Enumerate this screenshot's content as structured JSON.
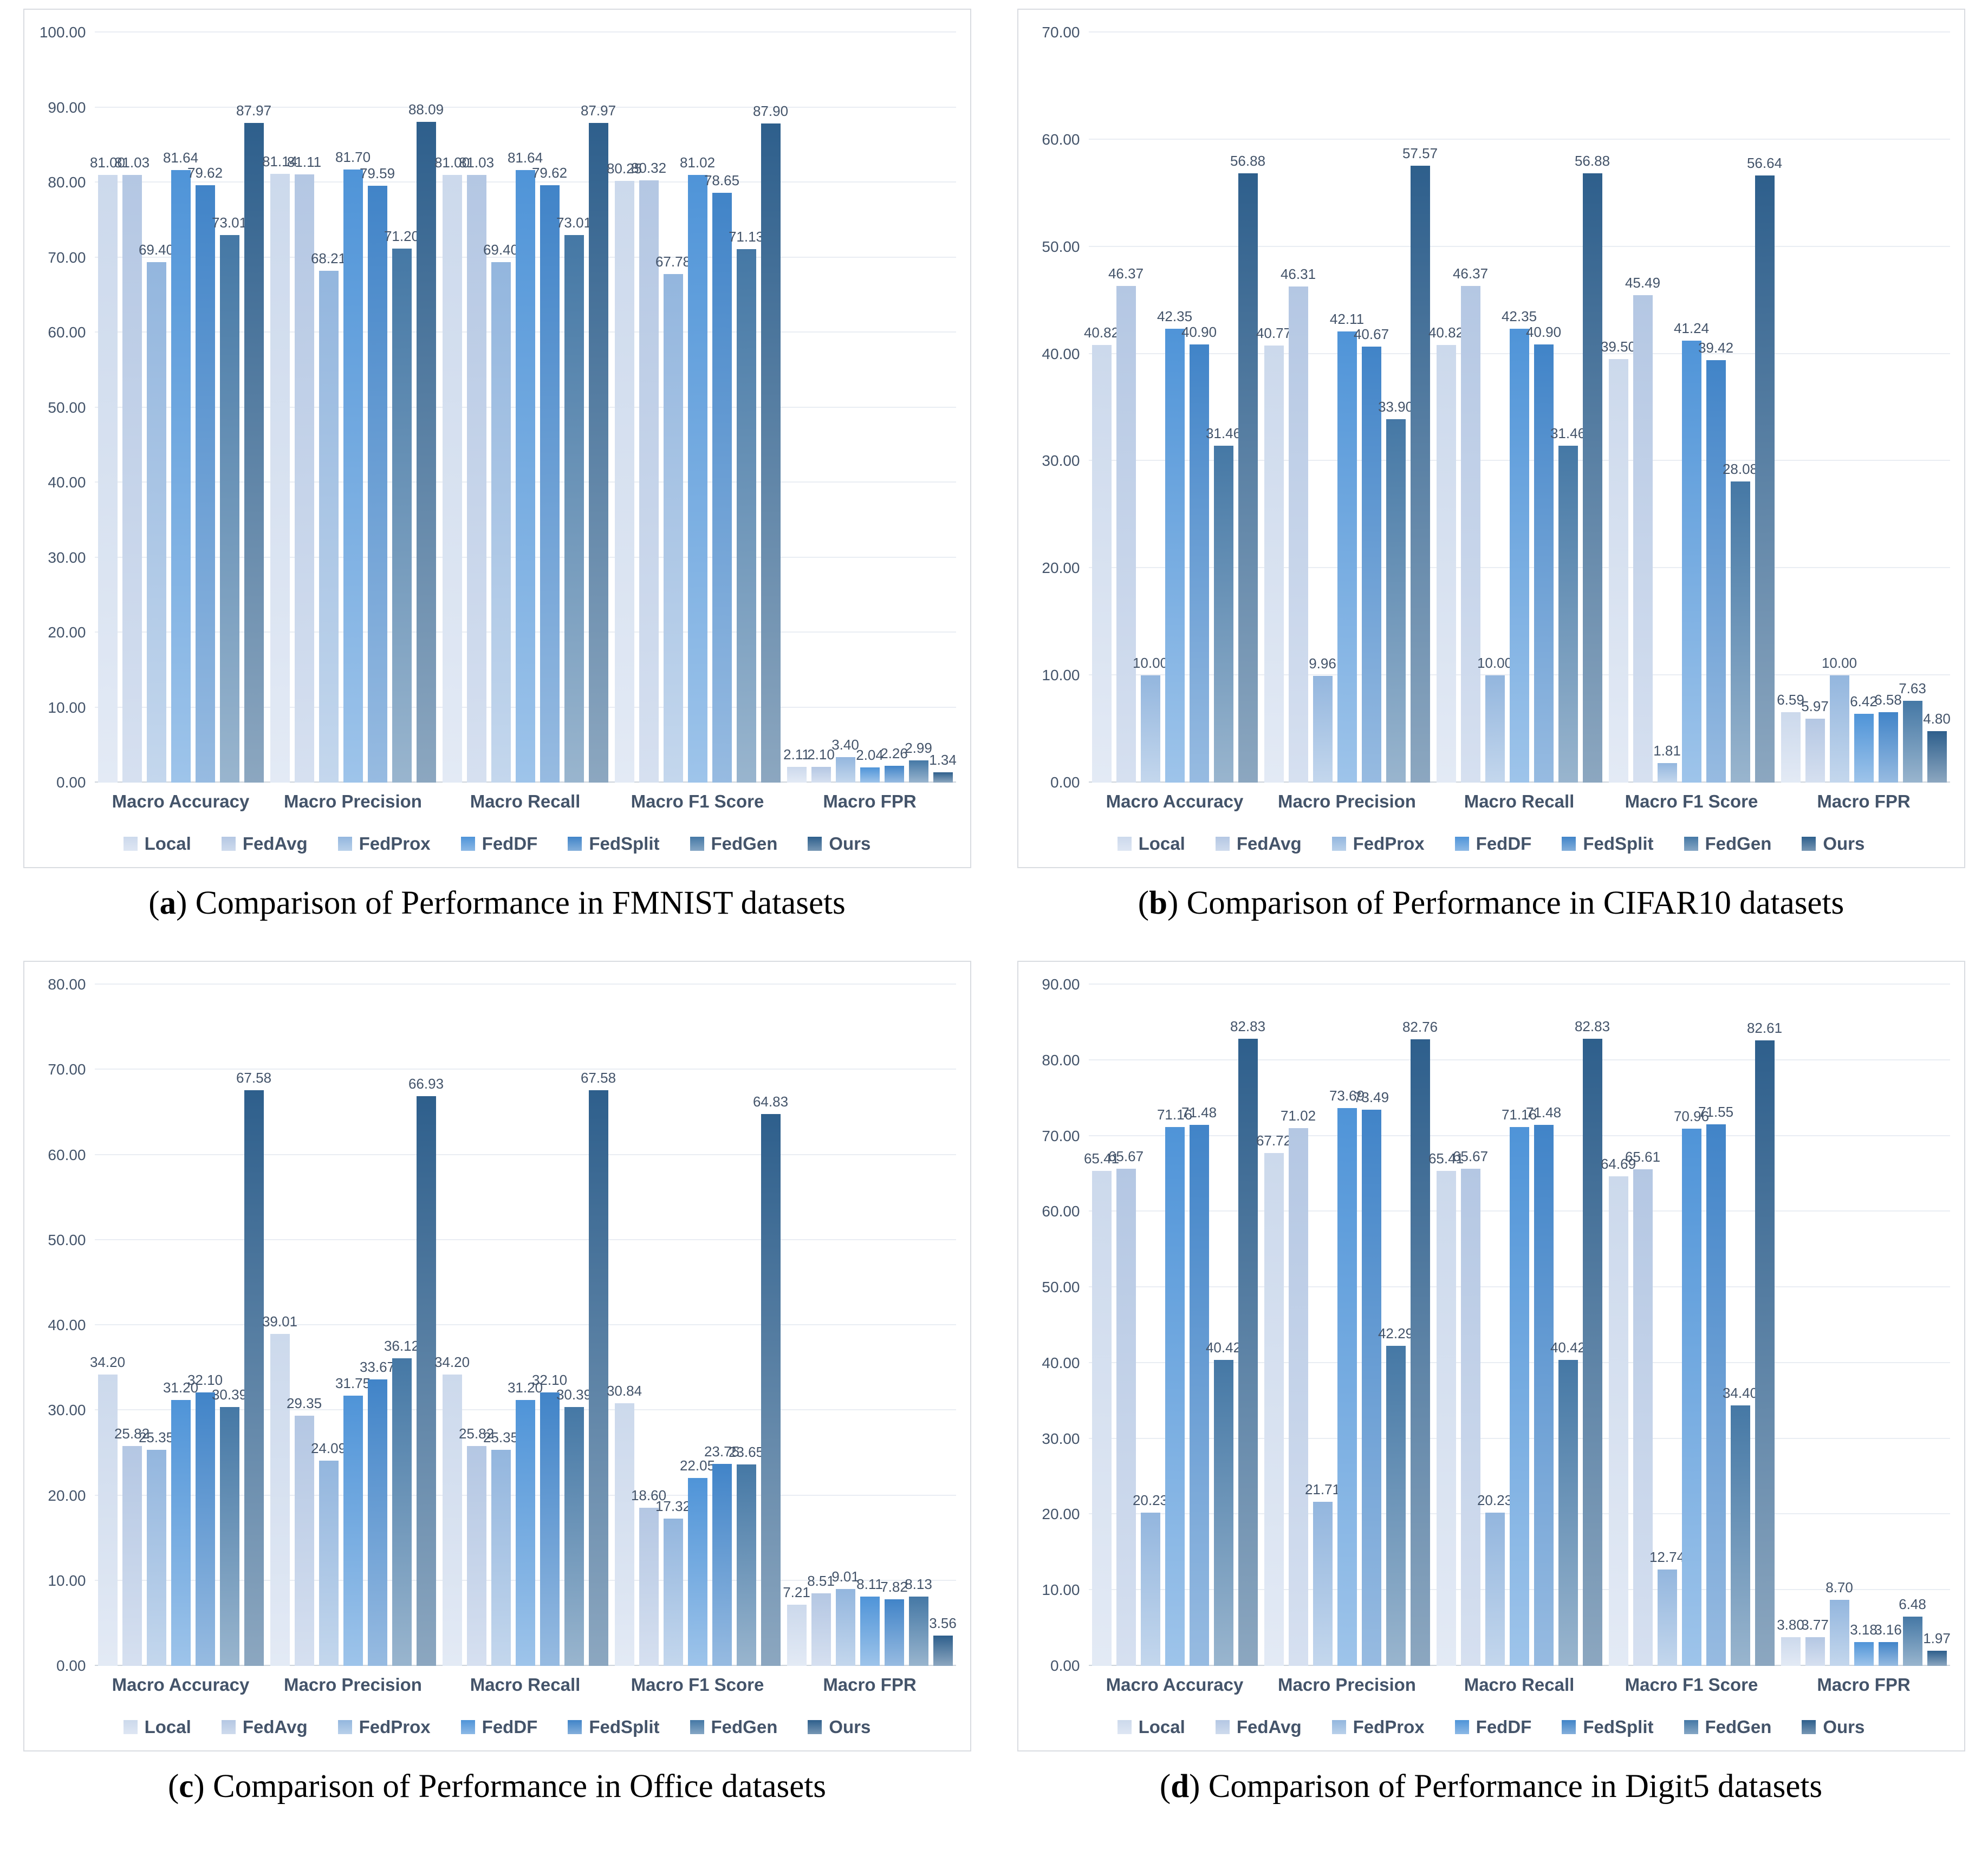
{
  "figure": {
    "series_names": [
      "Local",
      "FedAvg",
      "FedProx",
      "FedDF",
      "FedSplit",
      "FedGen",
      "Ours"
    ],
    "series_colors": [
      "#ccd9ec",
      "#b4c7e3",
      "#93b6de",
      "#4f94d8",
      "#4184c8",
      "#4578a5",
      "#2e5f8c"
    ],
    "text_color": "#44546a",
    "gridline_color": "#e9edf3"
  },
  "chart_data": [
    {
      "type": "bar",
      "caption_label": "a",
      "caption_text": "Comparison of Performance in FMNIST datasets",
      "categories": [
        "Macro Accuracy",
        "Macro Precision",
        "Macro Recall",
        "Macro F1 Score",
        "Macro FPR"
      ],
      "series": [
        {
          "name": "Local",
          "values": [
            81.0,
            81.14,
            81.0,
            80.25,
            2.11
          ]
        },
        {
          "name": "FedAvg",
          "values": [
            81.03,
            81.11,
            81.03,
            80.32,
            2.1
          ]
        },
        {
          "name": "FedProx",
          "values": [
            69.4,
            68.21,
            69.4,
            67.78,
            3.4
          ]
        },
        {
          "name": "FedDF",
          "values": [
            81.64,
            81.7,
            81.64,
            81.02,
            2.04
          ]
        },
        {
          "name": "FedSplit",
          "values": [
            79.62,
            79.59,
            79.62,
            78.65,
            2.26
          ]
        },
        {
          "name": "FedGen",
          "values": [
            73.01,
            71.2,
            73.01,
            71.13,
            2.99
          ]
        },
        {
          "name": "Ours",
          "values": [
            87.97,
            88.09,
            87.97,
            87.9,
            1.34
          ]
        }
      ],
      "ylim": [
        0,
        100
      ],
      "ytick_step": 10,
      "grid": true,
      "legend_position": "bottom"
    },
    {
      "type": "bar",
      "caption_label": "b",
      "caption_text": "Comparison of Performance in CIFAR10 datasets",
      "categories": [
        "Macro Accuracy",
        "Macro Precision",
        "Macro Recall",
        "Macro F1 Score",
        "Macro FPR"
      ],
      "series": [
        {
          "name": "Local",
          "values": [
            40.82,
            40.77,
            40.82,
            39.5,
            6.59
          ]
        },
        {
          "name": "FedAvg",
          "values": [
            46.37,
            46.31,
            46.37,
            45.49,
            5.97
          ]
        },
        {
          "name": "FedProx",
          "values": [
            10.0,
            9.96,
            10.0,
            1.81,
            10.0
          ]
        },
        {
          "name": "FedDF",
          "values": [
            42.35,
            42.11,
            42.35,
            41.24,
            6.42
          ]
        },
        {
          "name": "FedSplit",
          "values": [
            40.9,
            40.67,
            40.9,
            39.42,
            6.58
          ]
        },
        {
          "name": "FedGen",
          "values": [
            31.46,
            33.9,
            31.46,
            28.08,
            7.63
          ]
        },
        {
          "name": "Ours",
          "values": [
            56.88,
            57.57,
            56.88,
            56.64,
            4.8
          ]
        }
      ],
      "ylim": [
        0,
        70
      ],
      "ytick_step": 10,
      "grid": true,
      "legend_position": "bottom"
    },
    {
      "type": "bar",
      "caption_label": "c",
      "caption_text": "Comparison of Performance in Office datasets",
      "categories": [
        "Macro Accuracy",
        "Macro Precision",
        "Macro Recall",
        "Macro F1 Score",
        "Macro FPR"
      ],
      "series": [
        {
          "name": "Local",
          "values": [
            34.2,
            39.01,
            34.2,
            30.84,
            7.21
          ]
        },
        {
          "name": "FedAvg",
          "values": [
            25.82,
            29.35,
            25.82,
            18.6,
            8.51
          ]
        },
        {
          "name": "FedProx",
          "values": [
            25.35,
            24.09,
            25.35,
            17.32,
            9.01
          ]
        },
        {
          "name": "FedDF",
          "values": [
            31.2,
            31.75,
            31.2,
            22.05,
            8.11
          ]
        },
        {
          "name": "FedSplit",
          "values": [
            32.1,
            33.67,
            32.1,
            23.75,
            7.82
          ]
        },
        {
          "name": "FedGen",
          "values": [
            30.39,
            36.12,
            30.39,
            23.65,
            8.13
          ]
        },
        {
          "name": "Ours",
          "values": [
            67.58,
            66.93,
            67.58,
            64.83,
            3.56
          ]
        }
      ],
      "ylim": [
        0,
        80
      ],
      "ytick_step": 10,
      "grid": true,
      "legend_position": "bottom"
    },
    {
      "type": "bar",
      "caption_label": "d",
      "caption_text": "Comparison of Performance in Digit5 datasets",
      "categories": [
        "Macro Accuracy",
        "Macro Precision",
        "Macro Recall",
        "Macro F1 Score",
        "Macro FPR"
      ],
      "series": [
        {
          "name": "Local",
          "values": [
            65.41,
            67.72,
            65.41,
            64.69,
            3.8
          ]
        },
        {
          "name": "FedAvg",
          "values": [
            65.67,
            71.02,
            65.67,
            65.61,
            3.77
          ]
        },
        {
          "name": "FedProx",
          "values": [
            20.23,
            21.71,
            20.23,
            12.74,
            8.7
          ]
        },
        {
          "name": "FedDF",
          "values": [
            71.16,
            73.69,
            71.16,
            70.96,
            3.18
          ]
        },
        {
          "name": "FedSplit",
          "values": [
            71.48,
            73.49,
            71.48,
            71.55,
            3.16
          ]
        },
        {
          "name": "FedGen",
          "values": [
            40.42,
            42.29,
            40.42,
            34.4,
            6.48
          ]
        },
        {
          "name": "Ours",
          "values": [
            82.83,
            82.76,
            82.83,
            82.61,
            1.97
          ]
        }
      ],
      "ylim": [
        0,
        90
      ],
      "ytick_step": 10,
      "grid": true,
      "legend_position": "bottom"
    }
  ]
}
